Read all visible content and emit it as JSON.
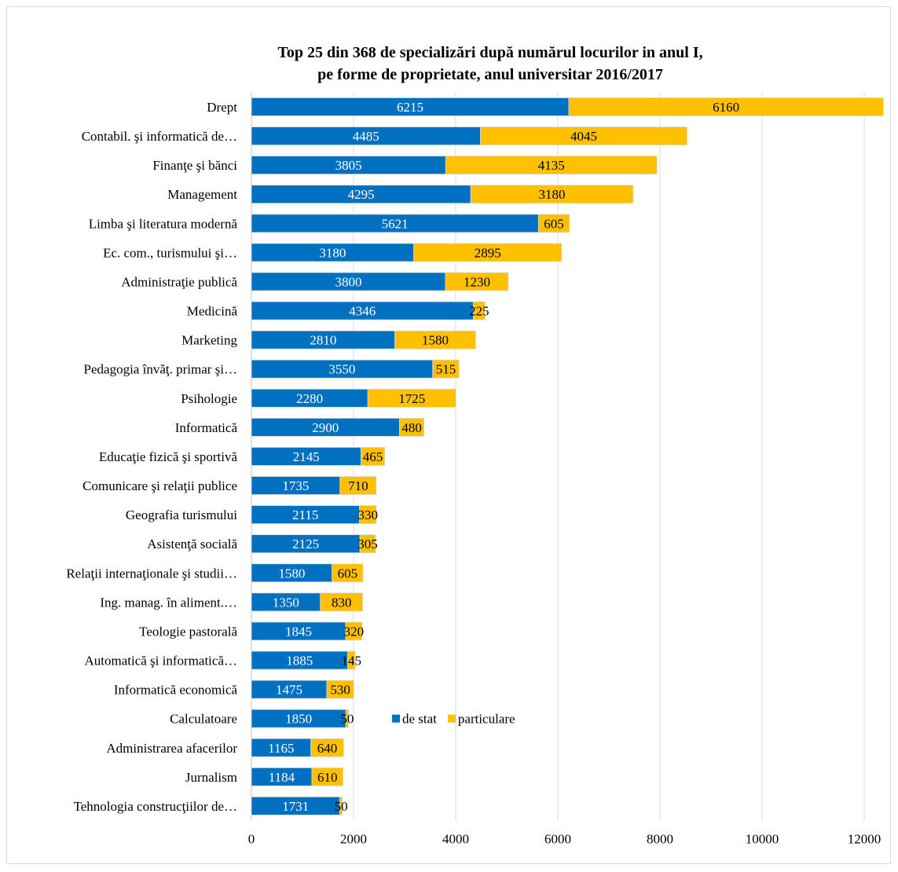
{
  "chart_data": {
    "type": "bar",
    "orientation": "horizontal",
    "stacked": true,
    "title": "Top 25 din 368 de specializări după numărul locurilor in anul I,",
    "subtitle": "pe forme de proprietate,  anul universitar 2016/2017",
    "categories": [
      "Drept",
      "Contabil. şi informatică de…",
      "Finanţe şi bănci",
      "Management",
      "Limba şi literatura modernă",
      "Ec. com., turismului şi…",
      "Administraţie publică",
      "Medicină",
      "Marketing",
      "Pedagogia învăţ. primar şi…",
      "Psihologie",
      "Informatică",
      "Educaţie fizică şi sportivă",
      "Comunicare şi relaţii publice",
      "Geografia turismului",
      "Asistenţă socială",
      "Relaţii internaţionale şi studii…",
      "Ing. manag. în aliment.…",
      "Teologie pastorală",
      "Automatică şi informatică…",
      "Informatică economică",
      "Calculatoare",
      "Administrarea afacerilor",
      "Jurnalism",
      "Tehnologia construcţiilor de…"
    ],
    "series": [
      {
        "name": "de stat",
        "color": "#0070C0",
        "values": [
          6215,
          4485,
          3805,
          4295,
          5621,
          3180,
          3800,
          4346,
          2810,
          3550,
          2280,
          2900,
          2145,
          1735,
          2115,
          2125,
          1580,
          1350,
          1845,
          1885,
          1475,
          1850,
          1165,
          1184,
          1731
        ]
      },
      {
        "name": "particulare",
        "color": "#FFC000",
        "values": [
          6160,
          4045,
          4135,
          3180,
          605,
          2895,
          1230,
          225,
          1580,
          515,
          1725,
          480,
          465,
          710,
          330,
          305,
          605,
          830,
          320,
          145,
          530,
          50,
          640,
          610,
          50
        ]
      }
    ],
    "xlim": [
      0,
      12000
    ],
    "xticks": [
      0,
      2000,
      4000,
      6000,
      8000,
      10000,
      12000
    ],
    "grid": true,
    "legend": "inside-right"
  }
}
